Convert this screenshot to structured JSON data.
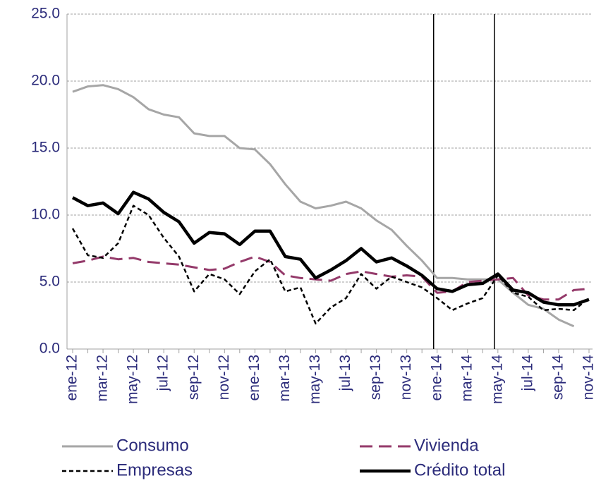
{
  "chart_data": {
    "type": "line",
    "categories": [
      "ene-12",
      null,
      "mar-12",
      null,
      "may-12",
      null,
      "jul-12",
      null,
      "sep-12",
      null,
      "nov-12",
      null,
      "ene-13",
      null,
      "mar-13",
      null,
      "may-13",
      null,
      "jul-13",
      null,
      "sep-13",
      null,
      "nov-13",
      null,
      "ene-14",
      null,
      "mar-14",
      null,
      "may-14",
      null,
      "jul-14",
      null,
      "sep-14",
      null,
      "nov-14"
    ],
    "series": [
      {
        "name": "Consumo",
        "color": "#a6a6a6",
        "width": 3,
        "dash": "none",
        "values": [
          19.2,
          19.6,
          19.7,
          19.4,
          18.8,
          17.9,
          17.5,
          17.3,
          16.1,
          15.9,
          15.9,
          15.0,
          14.9,
          13.8,
          12.3,
          11.0,
          10.5,
          10.7,
          11.0,
          10.5,
          9.6,
          8.9,
          7.7,
          6.6,
          5.3,
          5.3,
          5.2,
          5.2,
          5.2,
          4.2,
          3.3,
          3.0,
          2.2,
          1.7,
          null
        ]
      },
      {
        "name": "Vivienda",
        "color": "#943a6a",
        "width": 3,
        "dash": "18 9",
        "values": [
          6.4,
          6.6,
          6.9,
          6.7,
          6.8,
          6.5,
          6.4,
          6.3,
          6.1,
          5.9,
          6.0,
          6.5,
          6.9,
          6.5,
          5.5,
          5.3,
          5.2,
          5.1,
          5.6,
          5.8,
          5.6,
          5.4,
          5.5,
          5.4,
          4.2,
          4.3,
          5.0,
          5.1,
          5.2,
          5.3,
          4.0,
          3.7,
          3.7,
          4.4,
          4.5
        ]
      },
      {
        "name": "Empresas",
        "color": "#000000",
        "width": 2.5,
        "dash": "6 4",
        "values": [
          9.0,
          7.0,
          6.8,
          7.9,
          10.7,
          10.0,
          8.3,
          6.9,
          4.3,
          5.6,
          5.2,
          4.1,
          5.8,
          6.7,
          4.3,
          4.6,
          1.9,
          3.1,
          3.8,
          5.6,
          4.5,
          5.4,
          5.0,
          4.6,
          3.8,
          2.9,
          3.4,
          3.8,
          5.5,
          4.2,
          3.9,
          2.9,
          3.0,
          2.9,
          3.8
        ]
      },
      {
        "name": "Crédito total",
        "color": "#000000",
        "width": 4.5,
        "dash": "none",
        "values": [
          11.3,
          10.7,
          10.9,
          10.1,
          11.7,
          11.2,
          10.2,
          9.5,
          7.9,
          8.7,
          8.6,
          7.8,
          8.8,
          8.8,
          6.9,
          6.7,
          5.3,
          5.9,
          6.6,
          7.5,
          6.5,
          6.8,
          6.2,
          5.5,
          4.5,
          4.3,
          4.8,
          4.9,
          5.6,
          4.4,
          4.2,
          3.5,
          3.3,
          3.3,
          3.7
        ]
      }
    ],
    "vlines": [
      "ene-14",
      "may-14"
    ],
    "ylim": [
      0,
      25
    ],
    "yticks": [
      {
        "value": 0,
        "label": "0.0"
      },
      {
        "value": 5,
        "label": "5.0"
      },
      {
        "value": 10,
        "label": "10.0"
      },
      {
        "value": 15,
        "label": "15.0"
      },
      {
        "value": 20,
        "label": "20.0"
      },
      {
        "value": 25,
        "label": "25.0"
      }
    ],
    "grid": true,
    "legend": "bottom"
  }
}
